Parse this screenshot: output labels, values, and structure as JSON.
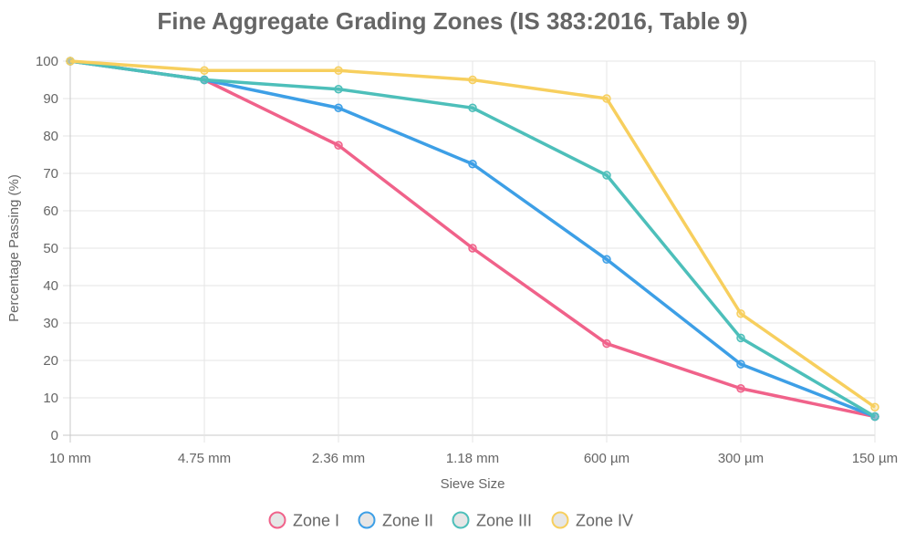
{
  "chart_data": {
    "type": "line",
    "title": "Fine Aggregate Grading Zones (IS 383:2016, Table 9)",
    "xlabel": "Sieve Size",
    "ylabel": "Percentage Passing (%)",
    "categories": [
      "10 mm",
      "4.75 mm",
      "2.36 mm",
      "1.18 mm",
      "600 µm",
      "300 µm",
      "150 µm"
    ],
    "ylim": [
      0,
      100
    ],
    "yticks": [
      "0",
      "10",
      "20",
      "30",
      "40",
      "50",
      "60",
      "70",
      "80",
      "90",
      "100"
    ],
    "grid": true,
    "legend_position": "bottom",
    "series": [
      {
        "name": "Zone I",
        "color": "#f0628a",
        "values": [
          100,
          95,
          77.5,
          50,
          24.5,
          12.5,
          5
        ]
      },
      {
        "name": "Zone II",
        "color": "#3d9fe6",
        "values": [
          100,
          95,
          87.5,
          72.5,
          47,
          19,
          5
        ]
      },
      {
        "name": "Zone III",
        "color": "#4dbfba",
        "values": [
          100,
          95,
          92.5,
          87.5,
          69.5,
          26,
          5
        ]
      },
      {
        "name": "Zone IV",
        "color": "#f7cf5e",
        "values": [
          100,
          97.5,
          97.5,
          95,
          90,
          32.5,
          7.5
        ]
      }
    ]
  }
}
